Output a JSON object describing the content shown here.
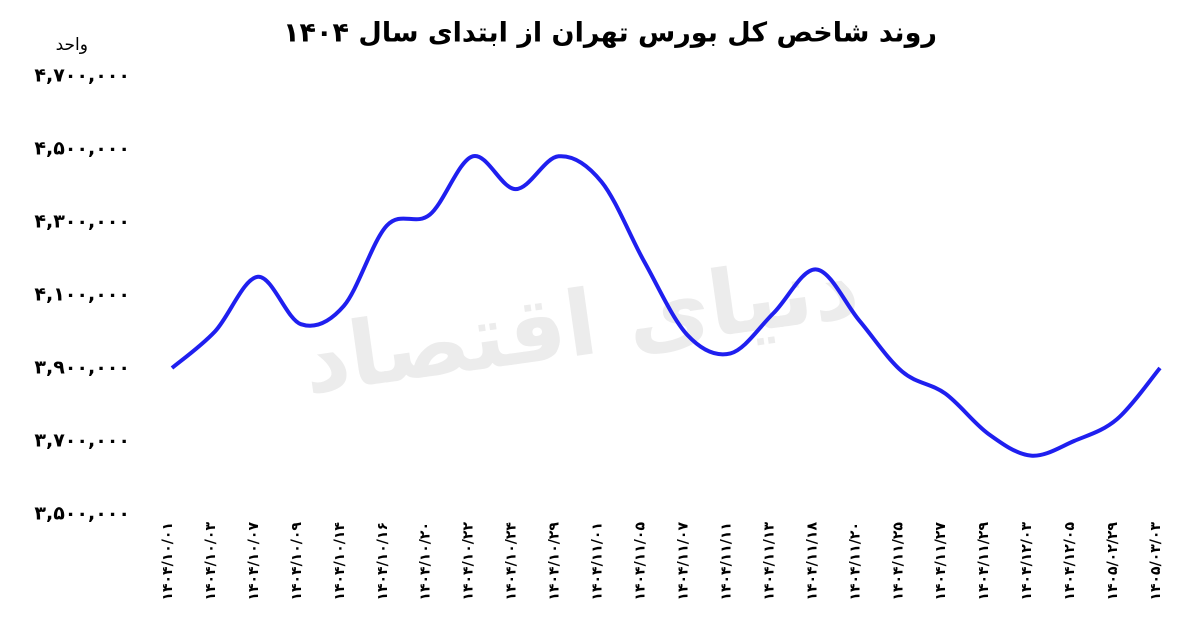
{
  "chart_data": {
    "type": "line",
    "title": "روند شاخص کل بورس تهران از ابتدای سال ۱۴۰۴",
    "y_label": "واحد",
    "watermark": "دنیای اقتصاد",
    "categories": [
      "۱۴۰۴/۱۰/۰۱",
      "۱۴۰۴/۱۰/۰۳",
      "۱۴۰۴/۱۰/۰۷",
      "۱۴۰۴/۱۰/۰۹",
      "۱۴۰۴/۱۰/۱۴",
      "۱۴۰۴/۱۰/۱۶",
      "۱۴۰۴/۱۰/۲۰",
      "۱۴۰۴/۱۰/۲۲",
      "۱۴۰۴/۱۰/۲۴",
      "۱۴۰۴/۱۰/۲۹",
      "۱۴۰۴/۱۱/۰۱",
      "۱۴۰۴/۱۱/۰۵",
      "۱۴۰۴/۱۱/۰۷",
      "۱۴۰۴/۱۱/۱۱",
      "۱۴۰۴/۱۱/۱۳",
      "۱۴۰۴/۱۱/۱۸",
      "۱۴۰۴/۱۱/۲۰",
      "۱۴۰۴/۱۱/۲۵",
      "۱۴۰۴/۱۱/۲۷",
      "۱۴۰۴/۱۱/۲۹",
      "۱۴۰۴/۱۲/۰۳",
      "۱۴۰۴/۱۲/۰۵",
      "۱۴۰۵/۰۲/۲۹",
      "۱۴۰۵/۰۳/۰۳"
    ],
    "series": [
      {
        "color": "#1f1fef",
        "values": [
          3900000,
          4000000,
          4150000,
          4020000,
          4070000,
          4290000,
          4320000,
          4480000,
          4390000,
          4480000,
          4410000,
          4190000,
          3990000,
          3940000,
          4050000,
          4170000,
          4030000,
          3890000,
          3830000,
          3720000,
          3660000,
          3700000,
          3760000,
          3900000
        ]
      }
    ],
    "ylim": [
      3500000,
      4700000
    ],
    "yticks": [
      {
        "value": 3500000,
        "label": "۳,۵۰۰,۰۰۰"
      },
      {
        "value": 3700000,
        "label": "۳,۷۰۰,۰۰۰"
      },
      {
        "value": 3900000,
        "label": "۳,۹۰۰,۰۰۰"
      },
      {
        "value": 4100000,
        "label": "۴,۱۰۰,۰۰۰"
      },
      {
        "value": 4300000,
        "label": "۴,۳۰۰,۰۰۰"
      },
      {
        "value": 4500000,
        "label": "۴,۵۰۰,۰۰۰"
      },
      {
        "value": 4700000,
        "label": "۴,۷۰۰,۰۰۰"
      }
    ],
    "grid": false
  }
}
